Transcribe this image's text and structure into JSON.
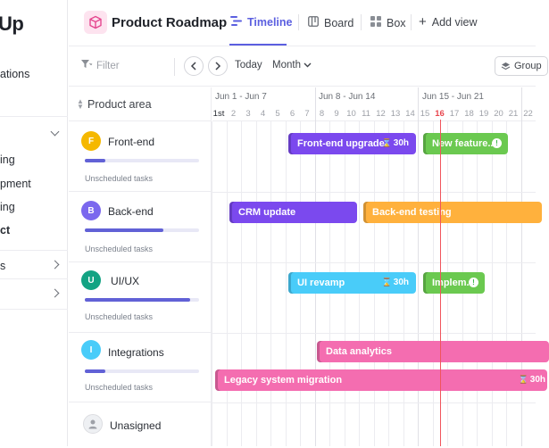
{
  "app": {
    "logo_text": "Up"
  },
  "sidebar": {
    "items": [
      {
        "label": "ations"
      },
      {
        "label": "ing"
      },
      {
        "label": "pment"
      },
      {
        "label": "ing"
      },
      {
        "label": "ct"
      },
      {
        "label": "s"
      }
    ]
  },
  "header": {
    "project_title": "Product Roadmap",
    "tabs": [
      {
        "label": "Timeline"
      },
      {
        "label": "Board"
      },
      {
        "label": "Box"
      },
      {
        "label": "Add view"
      }
    ]
  },
  "toolbar": {
    "filter_label": "Filter",
    "today_label": "Today",
    "month_label": "Month",
    "group_label": "Group"
  },
  "panel": {
    "header_label": "Product area",
    "areas": [
      {
        "initial": "F",
        "name": "Front-end",
        "color": "#f5b800",
        "progress": 0.18,
        "unscheduled": "Unscheduled tasks"
      },
      {
        "initial": "B",
        "name": "Back-end",
        "color": "#7b68ee",
        "progress": 0.69,
        "unscheduled": "Unscheduled tasks"
      },
      {
        "initial": "U",
        "name": "UI/UX",
        "color": "#13a383",
        "progress": 0.92,
        "unscheduled": "Unscheduled tasks"
      },
      {
        "initial": "I",
        "name": "Integrations",
        "color": "#49ccf9",
        "progress": 0.18,
        "unscheduled": "Unscheduled tasks"
      },
      {
        "name": "Unasigned"
      }
    ]
  },
  "timeline": {
    "weeks": [
      "Jun 1 - Jun 7",
      "Jun 8 - Jun 14",
      "Jun 15 - Jun 21"
    ],
    "days": [
      "1st",
      "2",
      "3",
      "4",
      "5",
      "6",
      "7",
      "8",
      "9",
      "10",
      "11",
      "12",
      "13",
      "14",
      "15",
      "16",
      "17",
      "18",
      "19",
      "20",
      "21",
      "22"
    ],
    "today_day": "16",
    "bars": [
      {
        "label": "Front-end upgrade",
        "hours": "30h",
        "color": "#7b49ee"
      },
      {
        "label": "New feature..",
        "color": "#6bc950",
        "info": "!"
      },
      {
        "label": "CRM update",
        "color": "#7b49ee"
      },
      {
        "label": "Back-end testing",
        "color": "#ffb13d"
      },
      {
        "label": "UI revamp",
        "hours": "30h",
        "color": "#49ccf9"
      },
      {
        "label": "Implem..",
        "color": "#6bc950",
        "info": "!"
      },
      {
        "label": "Data analytics",
        "color": "#f46db0"
      },
      {
        "label": "Legacy system migration",
        "hours": "30h",
        "color": "#f46db0"
      }
    ]
  }
}
